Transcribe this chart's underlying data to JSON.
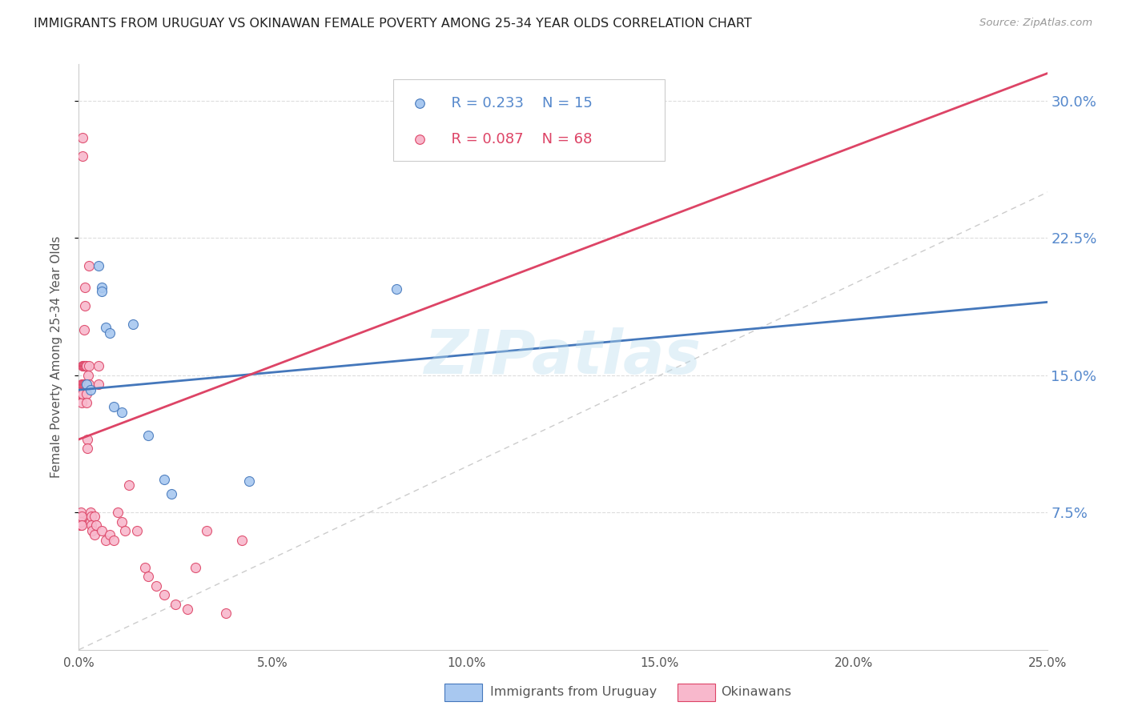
{
  "title": "IMMIGRANTS FROM URUGUAY VS OKINAWAN FEMALE POVERTY AMONG 25-34 YEAR OLDS CORRELATION CHART",
  "source": "Source: ZipAtlas.com",
  "ylabel": "Female Poverty Among 25-34 Year Olds",
  "xlim": [
    0.0,
    0.25
  ],
  "ylim": [
    0.0,
    0.32
  ],
  "xtick_labels": [
    "0.0%",
    "5.0%",
    "10.0%",
    "15.0%",
    "20.0%",
    "25.0%"
  ],
  "xtick_vals": [
    0.0,
    0.05,
    0.1,
    0.15,
    0.2,
    0.25
  ],
  "ytick_labels": [
    "7.5%",
    "15.0%",
    "22.5%",
    "30.0%"
  ],
  "ytick_vals": [
    0.075,
    0.15,
    0.225,
    0.3
  ],
  "watermark": "ZIPatlas",
  "legend_blue_r": "R = 0.233",
  "legend_blue_n": "N = 15",
  "legend_pink_r": "R = 0.087",
  "legend_pink_n": "N = 68",
  "blue_color": "#A8C8F0",
  "pink_color": "#F8B8CC",
  "blue_line_color": "#4477BB",
  "pink_line_color": "#DD4466",
  "diag_line_color": "#CCCCCC",
  "grid_color": "#DDDDDD",
  "blue_scatter_x": [
    0.002,
    0.003,
    0.005,
    0.006,
    0.006,
    0.007,
    0.008,
    0.009,
    0.011,
    0.014,
    0.018,
    0.022,
    0.024,
    0.044,
    0.082
  ],
  "blue_scatter_y": [
    0.145,
    0.142,
    0.21,
    0.198,
    0.196,
    0.176,
    0.173,
    0.133,
    0.13,
    0.178,
    0.117,
    0.093,
    0.085,
    0.092,
    0.197
  ],
  "pink_scatter_x": [
    0.0003,
    0.0003,
    0.0004,
    0.0004,
    0.0004,
    0.0005,
    0.0005,
    0.0006,
    0.0006,
    0.0007,
    0.0007,
    0.0008,
    0.0008,
    0.0008,
    0.001,
    0.001,
    0.001,
    0.001,
    0.001,
    0.0012,
    0.0012,
    0.0013,
    0.0014,
    0.0014,
    0.0015,
    0.0015,
    0.0016,
    0.0016,
    0.0018,
    0.0018,
    0.002,
    0.002,
    0.002,
    0.0022,
    0.0022,
    0.0023,
    0.0025,
    0.0025,
    0.0027,
    0.003,
    0.003,
    0.0032,
    0.0033,
    0.0035,
    0.004,
    0.004,
    0.0045,
    0.005,
    0.005,
    0.006,
    0.007,
    0.008,
    0.009,
    0.01,
    0.011,
    0.012,
    0.013,
    0.015,
    0.017,
    0.018,
    0.02,
    0.022,
    0.025,
    0.028,
    0.03,
    0.033,
    0.038,
    0.042
  ],
  "pink_scatter_y": [
    0.14,
    0.14,
    0.073,
    0.07,
    0.068,
    0.073,
    0.068,
    0.075,
    0.07,
    0.073,
    0.068,
    0.145,
    0.14,
    0.135,
    0.28,
    0.27,
    0.155,
    0.145,
    0.14,
    0.155,
    0.145,
    0.175,
    0.155,
    0.145,
    0.155,
    0.145,
    0.198,
    0.188,
    0.155,
    0.145,
    0.155,
    0.14,
    0.135,
    0.115,
    0.11,
    0.15,
    0.21,
    0.155,
    0.145,
    0.075,
    0.07,
    0.073,
    0.068,
    0.065,
    0.063,
    0.073,
    0.068,
    0.155,
    0.145,
    0.065,
    0.06,
    0.063,
    0.06,
    0.075,
    0.07,
    0.065,
    0.09,
    0.065,
    0.045,
    0.04,
    0.035,
    0.03,
    0.025,
    0.022,
    0.045,
    0.065,
    0.02,
    0.06
  ],
  "blue_line_x0": 0.0,
  "blue_line_y0": 0.142,
  "blue_line_x1": 0.25,
  "blue_line_y1": 0.19,
  "pink_line_x0": 0.0,
  "pink_line_y0": 0.115,
  "pink_line_x1": 0.05,
  "pink_line_y1": 0.155
}
